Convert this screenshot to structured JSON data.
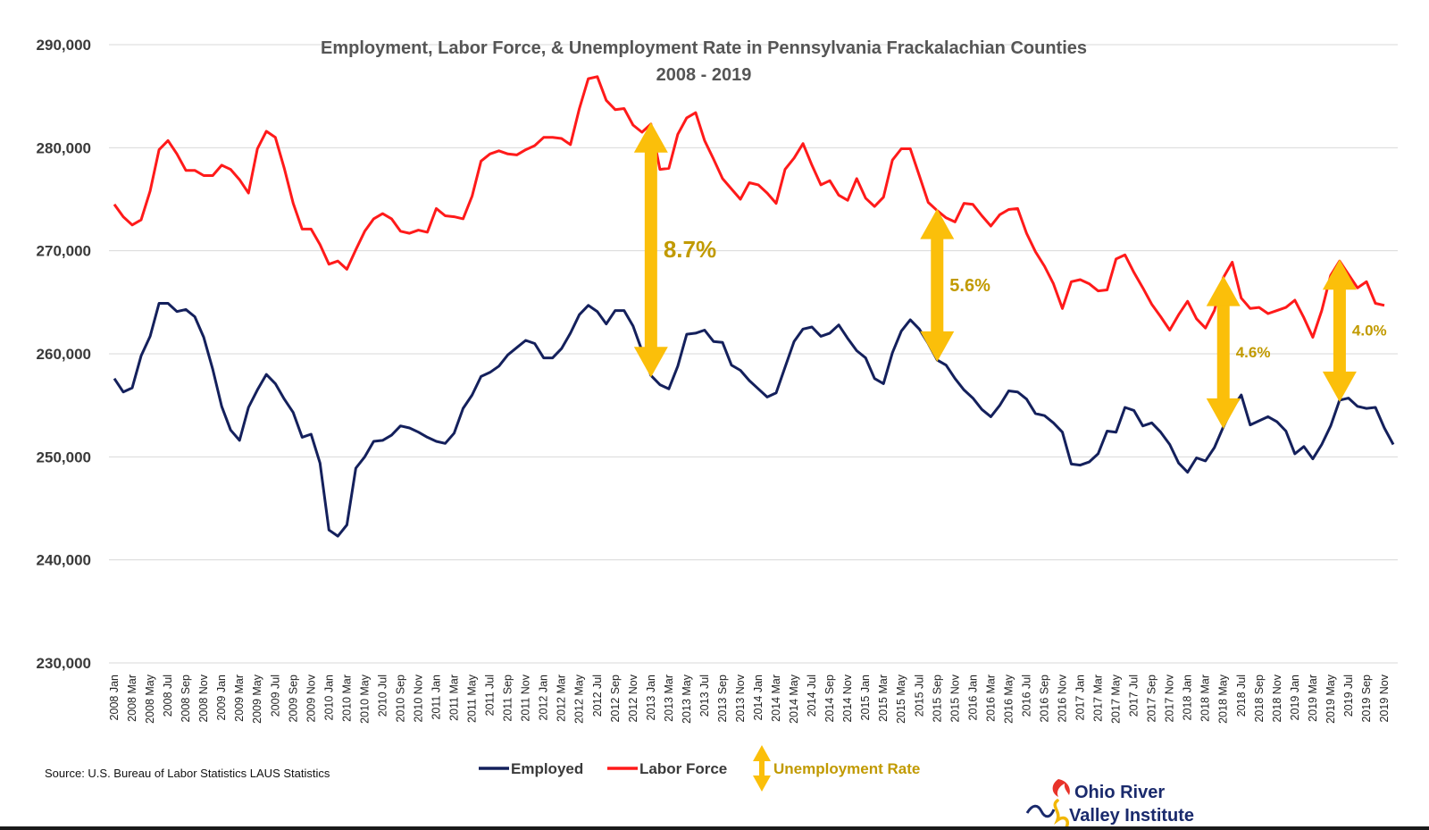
{
  "chart_data": {
    "type": "line",
    "title": "Employment, Labor Force, & Unemployment Rate in Pennsylvania Frackalachian Counties",
    "subtitle": "2008 - 2019",
    "ylim": [
      230000,
      290000
    ],
    "yticks": [
      "230,000",
      "240,000",
      "250,000",
      "260,000",
      "270,000",
      "280,000",
      "290,000"
    ],
    "ytick_values": [
      230000,
      240000,
      250000,
      260000,
      270000,
      280000,
      290000
    ],
    "grid": true,
    "x_tick_labels": [
      "2008 Jan",
      "2008 Mar",
      "2008 May",
      "2008 Jul",
      "2008 Sep",
      "2008 Nov",
      "2009 Jan",
      "2009 Mar",
      "2009 May",
      "2009 Jul",
      "2009 Sep",
      "2009 Nov",
      "2010 Jan",
      "2010 Mar",
      "2010 May",
      "2010 Jul",
      "2010 Sep",
      "2010 Nov",
      "2011 Jan",
      "2011 Mar",
      "2011 May",
      "2011 Jul",
      "2011 Sep",
      "2011 Nov",
      "2012 Jan",
      "2012 Mar",
      "2012 May",
      "2012 Jul",
      "2012 Sep",
      "2012 Nov",
      "2013 Jan",
      "2013 Mar",
      "2013 May",
      "2013 Jul",
      "2013 Sep",
      "2013 Nov",
      "2014 Jan",
      "2014 Mar",
      "2014 May",
      "2014 Jul",
      "2014 Sep",
      "2014 Nov",
      "2015 Jan",
      "2015 Mar",
      "2015 May",
      "2015 Jul",
      "2015 Sep",
      "2015 Nov",
      "2016 Jan",
      "2016 Mar",
      "2016 May",
      "2016 Jul",
      "2016 Sep",
      "2016 Nov",
      "2017 Jan",
      "2017 Mar",
      "2017 May",
      "2017 Jul",
      "2017 Sep",
      "2017 Nov",
      "2018 Jan",
      "2018 Mar",
      "2018 May",
      "2018 Jul",
      "2018 Sep",
      "2018 Nov",
      "2019 Jan",
      "2019 Mar",
      "2019 May",
      "2019 Jul",
      "2019 Sep",
      "2019 Nov"
    ],
    "series": [
      {
        "name": "Employed",
        "color": "#14205c",
        "values": [
          257600,
          256300,
          256700,
          259800,
          261700,
          264900,
          264900,
          264100,
          264300,
          263600,
          261600,
          258500,
          254900,
          252600,
          251600,
          254800,
          256500,
          258000,
          257100,
          255600,
          254300,
          251900,
          252200,
          249400,
          242900,
          242300,
          243400,
          248900,
          250000,
          251500,
          251600,
          252100,
          253000,
          252800,
          252400,
          251900,
          251500,
          251300,
          252300,
          254700,
          256000,
          257800,
          258200,
          258800,
          259900,
          260600,
          261300,
          261000,
          259600,
          259600,
          260500,
          262000,
          263800,
          264700,
          264100,
          262900,
          264200,
          264200,
          262700,
          260300,
          257900,
          257000,
          256600,
          258800,
          261900,
          262000,
          262300,
          261200,
          261100,
          258900,
          258400,
          257400,
          256600,
          255800,
          256200,
          258700,
          261200,
          262400,
          262600,
          261700,
          262000,
          262800,
          261500,
          260300,
          259600,
          257600,
          257100,
          260100,
          262200,
          263300,
          262400,
          261000,
          259400,
          258900,
          257600,
          256500,
          255700,
          254600,
          253900,
          255000,
          256400,
          256300,
          255600,
          254200,
          254000,
          253300,
          252400,
          249300,
          249200,
          249500,
          250300,
          252500,
          252400,
          254800,
          254500,
          253000,
          253300,
          252400,
          251200,
          249400,
          248500,
          249900,
          249600,
          250900,
          252900,
          254700,
          256000,
          253100,
          253500,
          253900,
          253400,
          252500,
          250300,
          251000,
          249800,
          251200,
          253000,
          255500,
          255700,
          254900,
          254700,
          254800,
          252800,
          251200
        ]
      },
      {
        "name": "Labor Force",
        "color": "#ff1a1a",
        "values": [
          274500,
          273300,
          272500,
          273000,
          275800,
          279800,
          280700,
          279400,
          277800,
          277800,
          277300,
          277300,
          278300,
          277900,
          276900,
          275600,
          279900,
          281600,
          281000,
          278000,
          274600,
          272100,
          272100,
          270600,
          268700,
          269000,
          268200,
          270100,
          271900,
          273100,
          273600,
          273100,
          271900,
          271700,
          272000,
          271800,
          274100,
          273400,
          273300,
          273100,
          275300,
          278700,
          279400,
          279700,
          279400,
          279300,
          279800,
          280200,
          281000,
          281000,
          280900,
          280300,
          283800,
          286700,
          286900,
          284600,
          283700,
          283800,
          282200,
          281500,
          282300,
          277900,
          278000,
          281300,
          282900,
          283400,
          280700,
          278900,
          277000,
          276000,
          275000,
          276600,
          276400,
          275600,
          274600,
          277900,
          279000,
          280400,
          278300,
          276400,
          276800,
          275400,
          274900,
          277000,
          275100,
          274300,
          275200,
          278800,
          279900,
          279900,
          277300,
          274700,
          273900,
          273200,
          272800,
          274600,
          274500,
          273400,
          272400,
          273500,
          274000,
          274100,
          271700,
          269900,
          268500,
          266800,
          264400,
          267000,
          267200,
          266800,
          266100,
          266200,
          269200,
          269600,
          267900,
          266400,
          264800,
          263600,
          262300,
          263800,
          265100,
          263400,
          262500,
          264200,
          267400,
          268900,
          265400,
          264400,
          264500,
          263900,
          264200,
          264500,
          265200,
          263500,
          261600,
          264200,
          267600,
          269000,
          267700,
          266400,
          267000,
          264900,
          264700
        ]
      }
    ],
    "annotations": [
      {
        "label": "8.7%",
        "x_index": 60
      },
      {
        "label": "5.6%",
        "x_index": 92
      },
      {
        "label": "4.6%",
        "x_index": 124
      },
      {
        "label": "4.0%",
        "x_index": 137
      }
    ],
    "legend": {
      "placement": "bottom",
      "employed": "Employed",
      "labor_force": "Labor Force",
      "unemployment_rate": "Unemployment Rate",
      "employed_color": "#14205c",
      "labor_force_color": "#ff1a1a",
      "arrow_color": "#fbbf0a"
    },
    "source": "Source: U.S. Bureau of Labor Statistics LAUS Statistics"
  },
  "logo": {
    "line1": "Ohio River",
    "line2": "Valley Institute"
  }
}
